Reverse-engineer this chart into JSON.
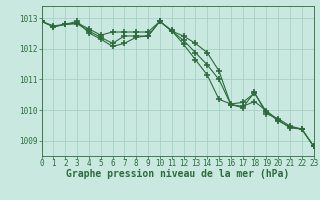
{
  "x": [
    0,
    1,
    2,
    3,
    4,
    5,
    6,
    7,
    8,
    9,
    10,
    11,
    12,
    13,
    14,
    15,
    16,
    17,
    18,
    19,
    20,
    21,
    22,
    23
  ],
  "line1": [
    1012.9,
    1012.75,
    1012.8,
    1012.85,
    1012.65,
    1012.45,
    1012.55,
    1012.55,
    1012.55,
    1012.55,
    1012.9,
    1012.6,
    1012.15,
    1011.65,
    1011.15,
    1010.35,
    1010.2,
    1010.25,
    1010.55,
    1009.95,
    1009.65,
    1009.45,
    1009.38,
    1008.82
  ],
  "line2": [
    1012.9,
    1012.72,
    1012.8,
    1012.82,
    1012.58,
    1012.38,
    1012.18,
    1012.42,
    1012.42,
    1012.42,
    1012.9,
    1012.58,
    1012.28,
    1011.88,
    1011.48,
    1011.0,
    1010.18,
    1010.12,
    1010.28,
    1009.98,
    1009.68,
    1009.42,
    1009.38,
    1008.82
  ],
  "line3": [
    1012.9,
    1012.72,
    1012.8,
    1012.9,
    1012.52,
    1012.32,
    1012.08,
    1012.18,
    1012.38,
    1012.42,
    1012.9,
    1012.58,
    1012.42,
    1012.18,
    1011.88,
    1011.28,
    1010.18,
    1010.08,
    1010.58,
    1009.88,
    1009.72,
    1009.48,
    1009.38,
    1008.82
  ],
  "bg_color": "#c8e8e0",
  "line_color": "#2d6b3c",
  "grid_color": "#a0ccc0",
  "marker": "+",
  "marker_size": 4,
  "marker_edge_width": 1.2,
  "line_width": 0.8,
  "xlabel": "Graphe pression niveau de la mer (hPa)",
  "xlim": [
    0,
    23
  ],
  "ylim": [
    1008.5,
    1013.4
  ],
  "yticks": [
    1009,
    1010,
    1011,
    1012,
    1013
  ],
  "xticks": [
    0,
    1,
    2,
    3,
    4,
    5,
    6,
    7,
    8,
    9,
    10,
    11,
    12,
    13,
    14,
    15,
    16,
    17,
    18,
    19,
    20,
    21,
    22,
    23
  ],
  "tick_fontsize": 5.5,
  "xlabel_fontsize": 7.0,
  "tick_color": "#2d6b3c"
}
